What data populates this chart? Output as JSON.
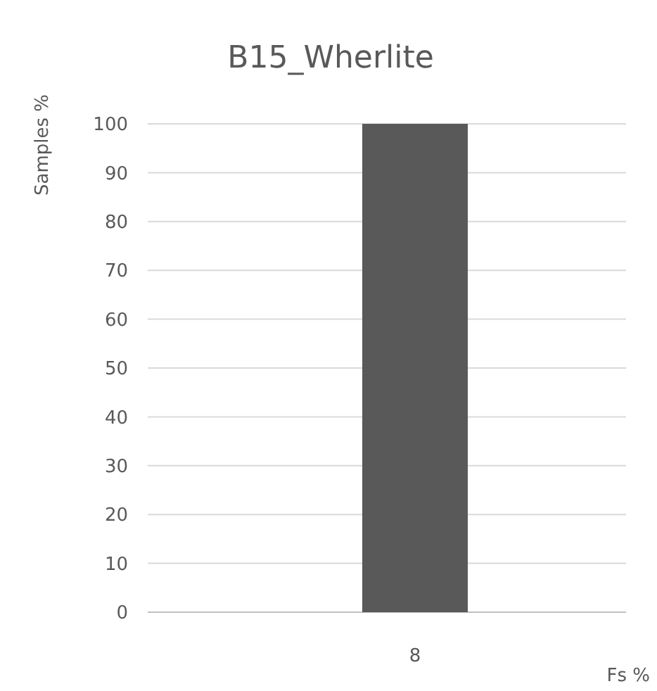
{
  "chart_data": {
    "type": "bar",
    "title": "B15_Wherlite",
    "xlabel": "Fs %",
    "ylabel": "Samples %",
    "categories": [
      "8"
    ],
    "values": [
      100
    ],
    "color": "#595959",
    "ylim": [
      0,
      100
    ],
    "yticks": [
      0,
      10,
      20,
      30,
      40,
      50,
      60,
      70,
      80,
      90,
      100
    ],
    "grid": "y"
  }
}
